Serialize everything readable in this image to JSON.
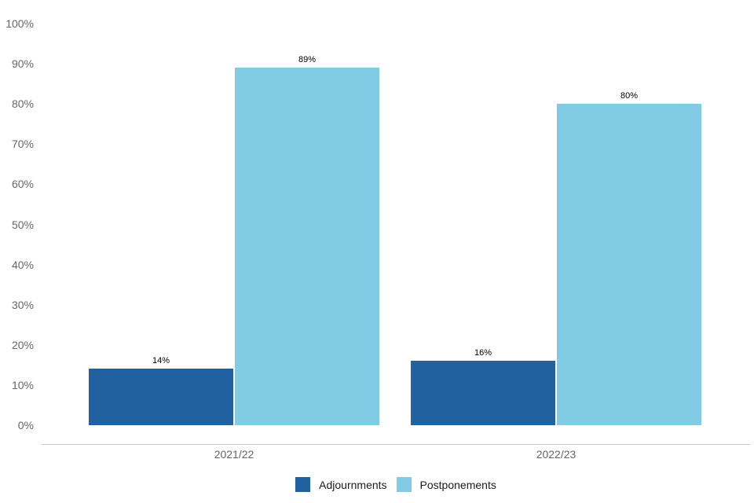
{
  "chart_data": {
    "type": "bar",
    "title": "",
    "xlabel": "",
    "ylabel": "",
    "categories": [
      "2021/22",
      "2022/23"
    ],
    "series": [
      {
        "name": "Adjournments",
        "color": "#2062A0",
        "values": [
          14,
          16
        ],
        "labels": [
          "14%",
          "16%"
        ]
      },
      {
        "name": "Postponements",
        "color": "#82CBE5",
        "values": [
          89,
          80
        ],
        "labels": [
          "89%",
          "80%"
        ]
      }
    ],
    "y_ticks": [
      "0%",
      "10%",
      "20%",
      "30%",
      "40%",
      "50%",
      "60%",
      "70%",
      "80%",
      "90%",
      "100%"
    ],
    "ylim": [
      0,
      100
    ],
    "grid": false,
    "legend_position": "bottom",
    "colors": {
      "axis_line": "#cccccc",
      "tick_label": "#666666",
      "category_label": "#666666",
      "value_label": "#000000",
      "legend_text": "#1a1a1a",
      "background": "#ffffff"
    }
  }
}
